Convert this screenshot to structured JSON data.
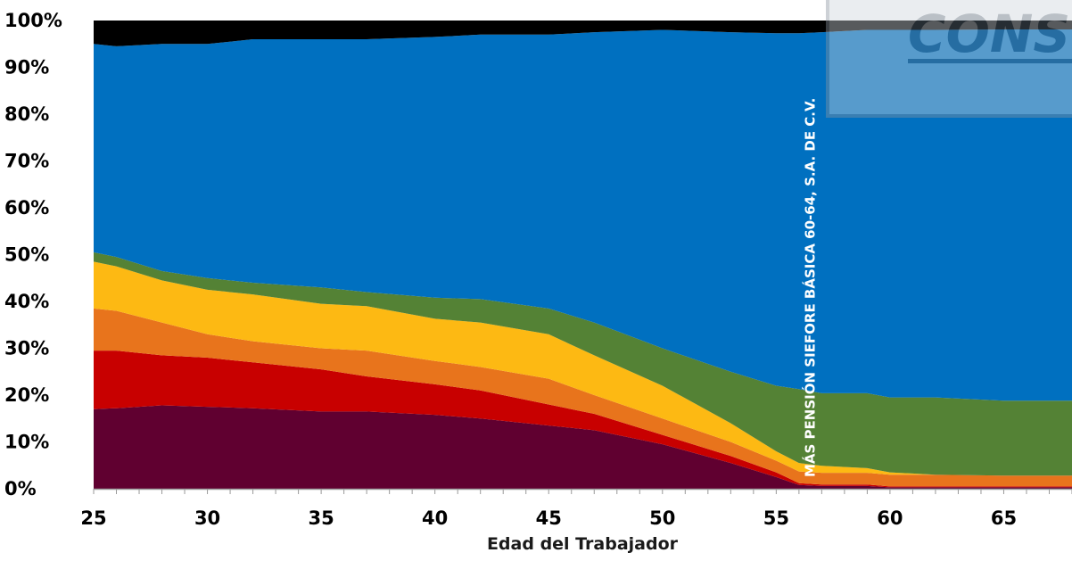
{
  "chart_data": {
    "type": "area",
    "stacked": true,
    "normalized_percent": true,
    "x": [
      25,
      26,
      28,
      30,
      32,
      35,
      37,
      40,
      42,
      45,
      47,
      50,
      53,
      55,
      56,
      57,
      59,
      60,
      62,
      65,
      67,
      68
    ],
    "x_ticks": [
      "25",
      "30",
      "35",
      "40",
      "45",
      "50",
      "55",
      "60",
      "65"
    ],
    "x_tick_values": [
      25,
      30,
      35,
      40,
      45,
      50,
      55,
      60,
      65
    ],
    "y_ticks": [
      "0%",
      "10%",
      "20%",
      "30%",
      "40%",
      "50%",
      "60%",
      "70%",
      "80%",
      "90%",
      "100%"
    ],
    "ylim": [
      0,
      100
    ],
    "xlim": [
      25,
      68
    ],
    "xlabel": "Edad del Trabajador",
    "ylabel": "",
    "title": "",
    "annotation": "MÁS PENSIÓN SIEFORE BÁSICA 60-64, S.A. DE C.V.",
    "annotation_x": 56.7,
    "watermark_text": "CONS",
    "series": [
      {
        "color": "#600030",
        "values": [
          17.0,
          17.2,
          17.8,
          17.5,
          17.2,
          16.5,
          16.5,
          15.8,
          15.0,
          13.5,
          12.5,
          9.5,
          5.5,
          2.5,
          0.8,
          0.6,
          0.6,
          0.3,
          0.3,
          0.3,
          0.3,
          0.3
        ]
      },
      {
        "color": "#c80000",
        "values": [
          12.5,
          12.3,
          10.7,
          10.5,
          9.8,
          9.0,
          7.5,
          6.5,
          6.0,
          4.5,
          3.5,
          2.0,
          1.5,
          1.0,
          0.4,
          0.3,
          0.3,
          0.2,
          0.2,
          0.2,
          0.2,
          0.2
        ]
      },
      {
        "color": "#e8741c",
        "values": [
          9.0,
          8.5,
          7.0,
          5.0,
          4.5,
          4.5,
          5.5,
          5.0,
          5.0,
          5.5,
          4.0,
          3.5,
          3.0,
          2.5,
          2.5,
          2.5,
          2.5,
          2.5,
          2.5,
          2.3,
          2.3,
          2.3
        ]
      },
      {
        "color": "#fdb913",
        "values": [
          10.0,
          9.5,
          9.0,
          9.5,
          10.0,
          9.5,
          9.5,
          9.0,
          9.5,
          9.5,
          8.5,
          7.0,
          4.0,
          2.0,
          1.8,
          1.5,
          1.0,
          0.5,
          0.0,
          0.0,
          0.0,
          0.0
        ]
      },
      {
        "color": "#548235",
        "values": [
          2.0,
          2.0,
          2.0,
          2.5,
          2.5,
          3.5,
          3.0,
          4.5,
          5.0,
          5.5,
          7.0,
          8.0,
          11.0,
          14.0,
          15.8,
          15.5,
          16.0,
          16.0,
          16.5,
          16.0,
          16.0,
          16.0
        ]
      },
      {
        "color": "#0070c0",
        "values": [
          44.5,
          45.0,
          48.5,
          50.0,
          52.0,
          53.0,
          54.0,
          55.7,
          56.5,
          58.5,
          62.0,
          68.0,
          72.5,
          75.3,
          76.0,
          77.1,
          77.6,
          78.5,
          78.5,
          79.3,
          79.3,
          79.3
        ]
      },
      {
        "color": "#000000",
        "values": [
          5.0,
          5.5,
          5.0,
          5.0,
          4.0,
          4.0,
          4.0,
          3.5,
          3.0,
          3.0,
          2.5,
          2.0,
          2.5,
          2.7,
          2.7,
          2.5,
          2.0,
          2.0,
          2.0,
          1.9,
          1.9,
          1.9
        ]
      }
    ]
  },
  "colors": {
    "axis": "#999999",
    "tick_label": "#000000",
    "annotation": "#ffffff",
    "watermark": "#7f8c9a"
  }
}
